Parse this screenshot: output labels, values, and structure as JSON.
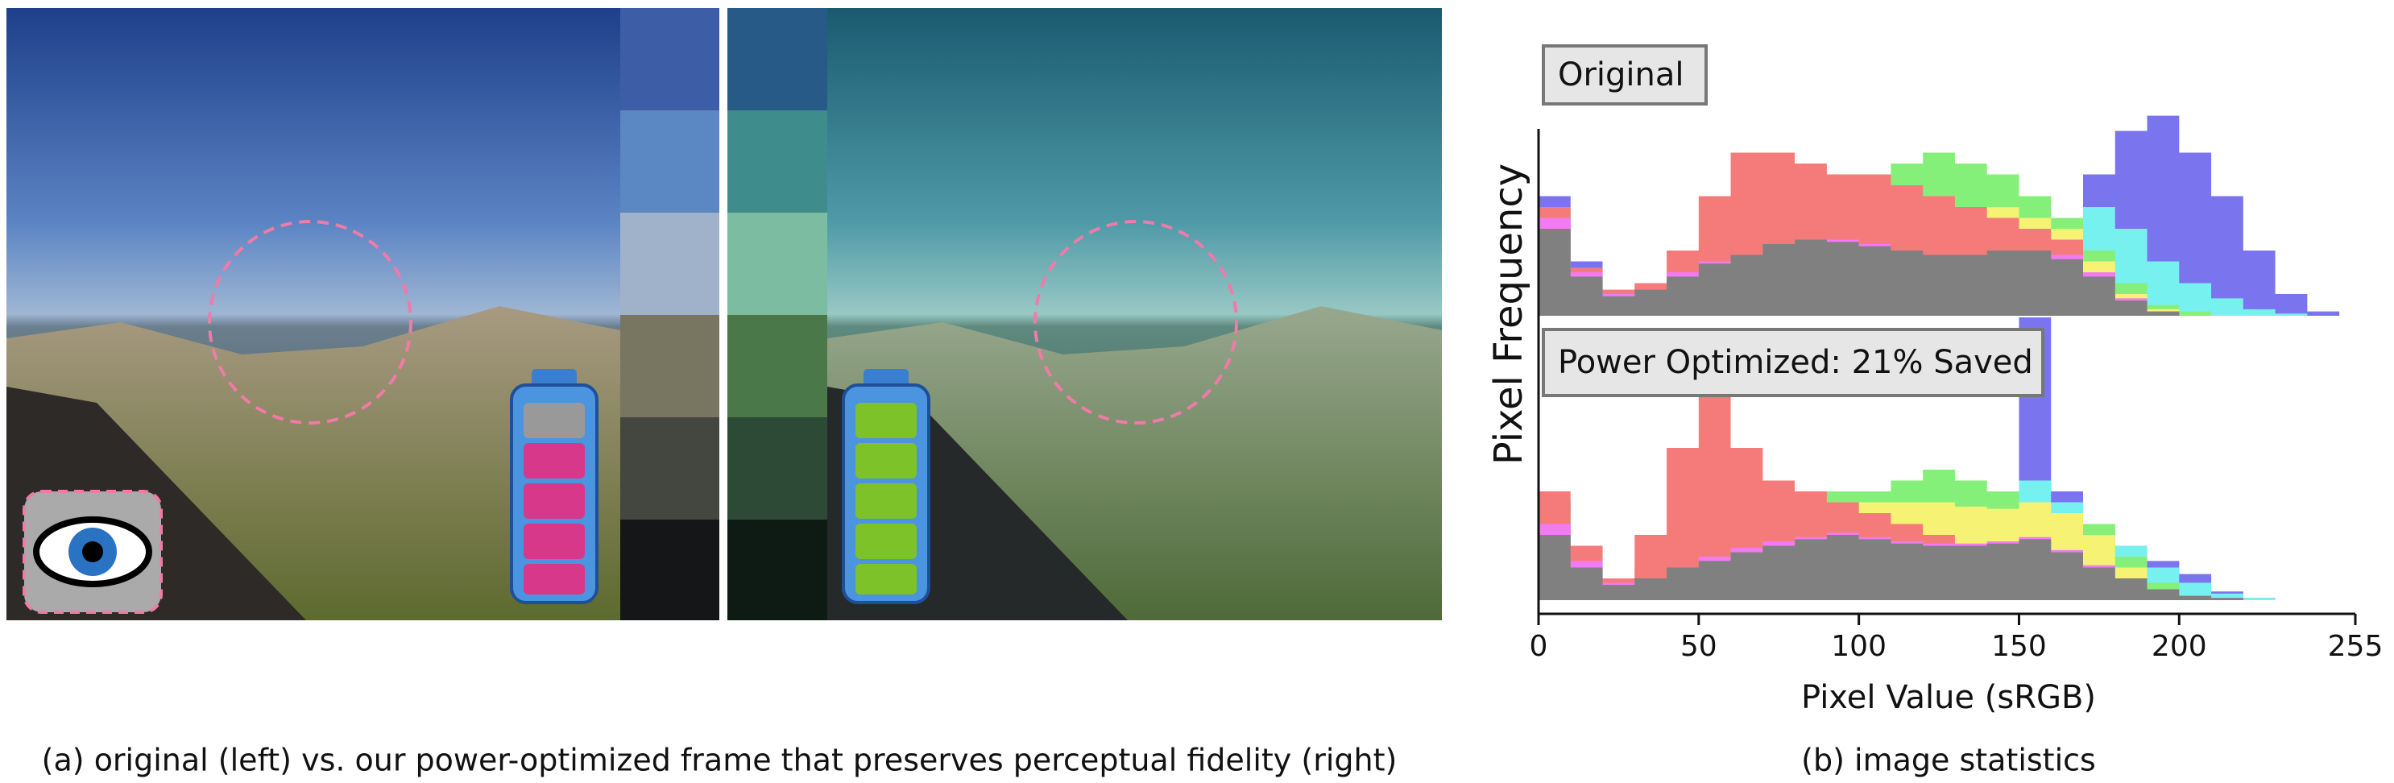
{
  "figure": {
    "caption_a": "(a) original (left) vs. our power-optimized frame that preserves perceptual fidelity (right)",
    "caption_b": "(b) image statistics"
  },
  "chart_data": {
    "type": "area",
    "xlabel": "Pixel Value (sRGB)",
    "ylabel": "Pixel Frequency",
    "xlim": [
      0,
      255
    ],
    "xticks": [
      0,
      50,
      100,
      150,
      200,
      255
    ],
    "ylim": [
      0,
      100
    ],
    "x": [
      0,
      10,
      20,
      30,
      40,
      50,
      60,
      70,
      80,
      90,
      100,
      110,
      120,
      130,
      140,
      150,
      160,
      170,
      180,
      190,
      200,
      210,
      220,
      230,
      240,
      250
    ],
    "panels": [
      {
        "label": "Original",
        "series": [
          {
            "name": "blue",
            "color": "#7a74ee",
            "values": [
              55,
              25,
              12,
              14,
              20,
              25,
              30,
              35,
              38,
              40,
              42,
              40,
              38,
              36,
              35,
              40,
              45,
              65,
              85,
              92,
              75,
              55,
              30,
              10,
              2,
              0
            ]
          },
          {
            "name": "cyan",
            "color": "#77f0f0",
            "values": [
              50,
              22,
              12,
              14,
              20,
              25,
              30,
              35,
              38,
              40,
              42,
              40,
              38,
              36,
              35,
              40,
              45,
              50,
              40,
              25,
              15,
              8,
              3,
              1,
              0,
              0
            ]
          },
          {
            "name": "green",
            "color": "#84f07a",
            "values": [
              50,
              22,
              12,
              14,
              20,
              28,
              40,
              50,
              55,
              60,
              65,
              70,
              75,
              70,
              65,
              55,
              45,
              30,
              15,
              5,
              2,
              0,
              0,
              0,
              0,
              0
            ]
          },
          {
            "name": "yellow",
            "color": "#f6f274",
            "values": [
              50,
              22,
              12,
              15,
              22,
              30,
              40,
              45,
              48,
              50,
              52,
              50,
              48,
              50,
              50,
              45,
              40,
              25,
              10,
              3,
              0,
              0,
              0,
              0,
              0,
              0
            ]
          },
          {
            "name": "red",
            "color": "#f57b7b",
            "values": [
              50,
              22,
              12,
              15,
              30,
              55,
              75,
              75,
              70,
              65,
              65,
              60,
              55,
              50,
              45,
              40,
              35,
              20,
              8,
              2,
              0,
              0,
              0,
              0,
              0,
              0
            ]
          },
          {
            "name": "magenta",
            "color": "#f27af2",
            "values": [
              45,
              20,
              10,
              12,
              20,
              25,
              28,
              30,
              34,
              35,
              33,
              30,
              28,
              28,
              30,
              30,
              28,
              20,
              8,
              2,
              0,
              0,
              0,
              0,
              0,
              0
            ]
          },
          {
            "name": "gray",
            "color": "#808080",
            "values": [
              40,
              18,
              9,
              12,
              18,
              24,
              28,
              33,
              35,
              34,
              32,
              30,
              28,
              28,
              30,
              30,
              26,
              18,
              7,
              2,
              0,
              0,
              0,
              0,
              0,
              0
            ]
          }
        ]
      },
      {
        "label": "Power Optimized: 21% Saved",
        "series": [
          {
            "name": "blue",
            "color": "#7a74ee",
            "values": [
              45,
              22,
              10,
              12,
              18,
              22,
              25,
              28,
              30,
              32,
              35,
              38,
              40,
              38,
              38,
              130,
              50,
              35,
              25,
              18,
              12,
              4,
              1,
              0,
              0,
              0
            ]
          },
          {
            "name": "cyan",
            "color": "#77f0f0",
            "values": [
              40,
              20,
              10,
              12,
              18,
              22,
              25,
              28,
              30,
              32,
              35,
              38,
              40,
              38,
              38,
              55,
              45,
              35,
              25,
              15,
              8,
              3,
              1,
              0,
              0,
              0
            ]
          },
          {
            "name": "green",
            "color": "#84f07a",
            "values": [
              40,
              20,
              10,
              15,
              30,
              45,
              50,
              50,
              50,
              50,
              50,
              55,
              60,
              55,
              50,
              45,
              40,
              35,
              20,
              8,
              2,
              0,
              0,
              0,
              0,
              0
            ]
          },
          {
            "name": "yellow",
            "color": "#f6f274",
            "values": [
              40,
              20,
              10,
              15,
              25,
              30,
              35,
              40,
              40,
              42,
              45,
              45,
              45,
              43,
              42,
              45,
              40,
              30,
              15,
              5,
              1,
              0,
              0,
              0,
              0,
              0
            ]
          },
          {
            "name": "red",
            "color": "#f57b7b",
            "values": [
              50,
              25,
              10,
              30,
              70,
              95,
              70,
              55,
              50,
              45,
              40,
              35,
              30,
              25,
              20,
              15,
              10,
              5,
              2,
              0,
              0,
              0,
              0,
              0,
              0,
              0
            ]
          },
          {
            "name": "magenta",
            "color": "#f27af2",
            "values": [
              35,
              18,
              8,
              10,
              15,
              20,
              24,
              27,
              29,
              31,
              29,
              27,
              26,
              26,
              27,
              29,
              23,
              16,
              10,
              5,
              2,
              1,
              0,
              0,
              0,
              0
            ]
          },
          {
            "name": "gray",
            "color": "#808080",
            "values": [
              30,
              15,
              7,
              10,
              15,
              18,
              22,
              25,
              28,
              30,
              28,
              26,
              25,
              25,
              26,
              28,
              22,
              15,
              10,
              5,
              2,
              1,
              0,
              0,
              0,
              0
            ]
          }
        ]
      }
    ]
  }
}
